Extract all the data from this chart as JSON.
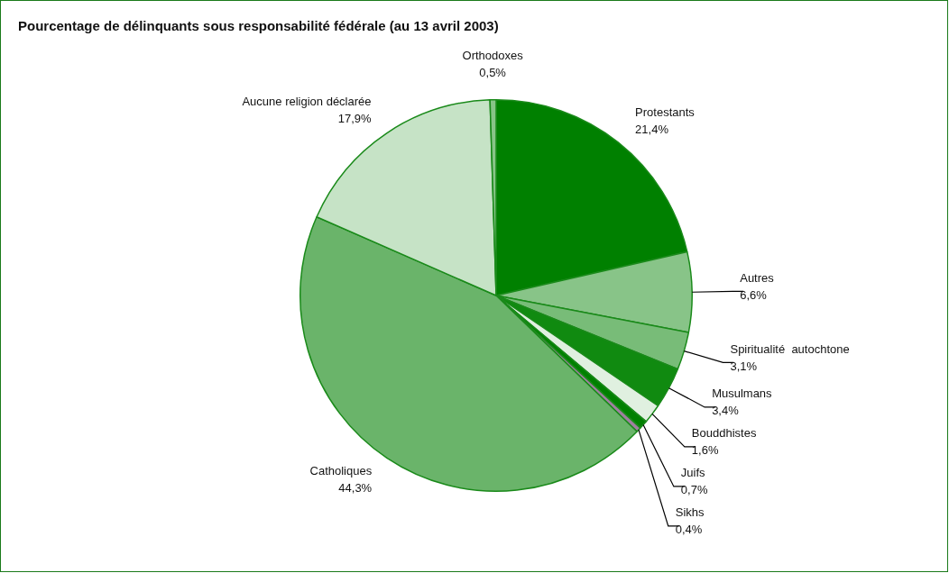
{
  "chart_data": {
    "type": "pie",
    "title": "Pourcentage de délinquants sous responsabilité fédérale (au 13 avril 2003)",
    "categories": [
      "Protestants",
      "Autres",
      "Spiritualité  autochtone",
      "Musulmans",
      "Bouddhistes",
      "Juifs",
      "Sikhs",
      "Catholiques",
      "Aucune religion déclarée",
      "Orthodoxes"
    ],
    "values": [
      21.4,
      6.6,
      3.1,
      3.4,
      1.6,
      0.7,
      0.4,
      44.3,
      17.9,
      0.5
    ],
    "value_labels": [
      "21,4%",
      "6,6%",
      "3,1%",
      "3,4%",
      "1,6%",
      "0,7%",
      "0,4%",
      "44,3%",
      "17,9%",
      "0,5%"
    ],
    "colors": [
      "#008000",
      "#88c488",
      "#78bc78",
      "#108a10",
      "#e0f0e0",
      "#008000",
      "#a080a0",
      "#6ab46a",
      "#c6e3c6",
      "#88c488"
    ],
    "legend": false
  }
}
